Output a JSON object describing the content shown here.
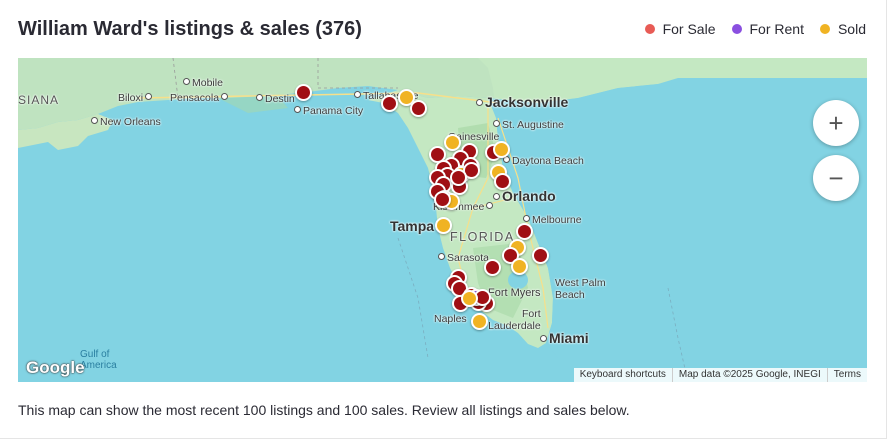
{
  "header": {
    "title": "William Ward's listings & sales (376)"
  },
  "legend": [
    {
      "label": "For Sale",
      "color": "#e85b55"
    },
    {
      "label": "For Rent",
      "color": "#8a4fe0"
    },
    {
      "label": "Sold",
      "color": "#f0b323"
    }
  ],
  "map": {
    "labels": {
      "louisiana": "SIANA",
      "biloxi": "Biloxi",
      "mobile": "Mobile",
      "pensacola": "Pensacola",
      "destin": "Destin",
      "panama_city": "Panama City",
      "tallahassee": "Tallahassee",
      "jacksonville": "Jacksonville",
      "new_orleans": "New Orleans",
      "st_augustine": "St. Augustine",
      "gainesville": "Gainesville",
      "daytona": "Daytona Beach",
      "orlando": "Orlando",
      "kissimmee": "Kissimmee",
      "tampa": "Tampa",
      "melbourne": "Melbourne",
      "florida": "FLORIDA",
      "sarasota": "Sarasota",
      "fort_myers": "Fort Myers",
      "west_palm": "West Palm",
      "west_palm_2": "Beach",
      "naples": "Naples",
      "fort_lauderdale": "Fort",
      "fort_lauderdale_2": "Lauderdale",
      "miami": "Miami",
      "gulf": "Gulf of",
      "gulf_2": "America"
    },
    "pin_colors": {
      "sale": "#a00f14",
      "rent": "#8a4fe0",
      "sold": "#f0b323"
    },
    "zoom_in": "+",
    "zoom_out": "−",
    "google": "Google",
    "attribution": {
      "shortcuts": "Keyboard shortcuts",
      "data": "Map data ©2025 Google, INEGI",
      "terms": "Terms"
    }
  },
  "footnote": "This map can show the most recent 100 listings and 100 sales. Review all listings and sales below."
}
